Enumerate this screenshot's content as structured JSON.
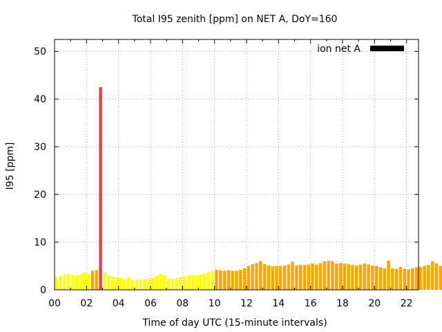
{
  "chart_data": {
    "type": "bar",
    "title": "Total I95 zenith [ppm] on NET A, DoY=160",
    "xlabel": "Time of day UTC (15-minute intervals)",
    "ylabel": "I95 [ppm]",
    "xlim": [
      0,
      22.75
    ],
    "ylim": [
      0,
      52.5
    ],
    "x_ticks": [
      "00",
      "02",
      "04",
      "06",
      "08",
      "10",
      "12",
      "14",
      "16",
      "18",
      "20",
      "22"
    ],
    "y_ticks": [
      "0",
      "10",
      "20",
      "30",
      "40",
      "50"
    ],
    "grid": true,
    "legend": {
      "position": "top-right",
      "label": "ion net A",
      "color": "#000000"
    },
    "colors": {
      "low": "#ffff00",
      "mid": "#ffa500",
      "high": "#e0474c"
    },
    "series": [
      {
        "interval_hours": 0.25,
        "x_start_hours": 0,
        "values": [
          2.6,
          2.9,
          3.2,
          3.3,
          3.1,
          3.0,
          3.2,
          3.6,
          3.3,
          4.0,
          4.1,
          42.5,
          3.7,
          3.0,
          2.8,
          2.6,
          2.5,
          2.2,
          2.6,
          2.1,
          2.1,
          2.2,
          2.2,
          2.3,
          2.5,
          2.9,
          3.3,
          3.0,
          2.4,
          2.3,
          2.5,
          2.7,
          2.8,
          3.0,
          3.1,
          3.0,
          3.2,
          3.4,
          3.7,
          3.9,
          4.2,
          4.1,
          4.0,
          4.1,
          4.0,
          4.0,
          4.2,
          4.5,
          5.0,
          5.4,
          5.6,
          6.0,
          5.4,
          5.1,
          4.9,
          5.0,
          5.0,
          5.1,
          5.3,
          5.9,
          5.1,
          5.2,
          5.2,
          5.3,
          5.5,
          5.3,
          5.6,
          6.0,
          6.1,
          6.0,
          5.5,
          5.6,
          5.5,
          5.4,
          5.2,
          5.1,
          5.3,
          5.5,
          5.3,
          5.1,
          5.0,
          4.7,
          4.5,
          6.1,
          4.5,
          4.4,
          4.8,
          4.4,
          4.3,
          4.5,
          4.7,
          4.8,
          5.0,
          5.2,
          6.0,
          5.5,
          5.0
        ]
      }
    ]
  }
}
